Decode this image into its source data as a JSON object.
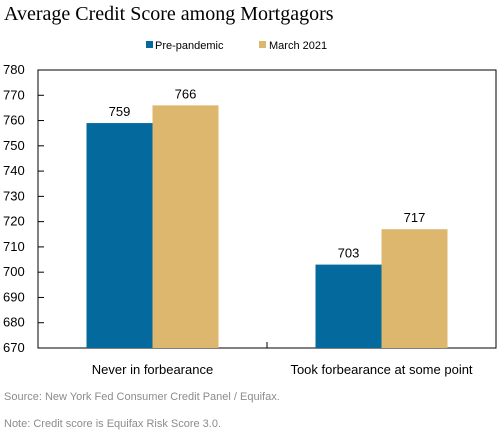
{
  "title": "Average Credit Score among Mortgagors",
  "source": "Source: New York Fed Consumer Credit Panel / Equifax.",
  "note": "Note: Credit score is Equifax Risk Score 3.0.",
  "colors": {
    "pre": "#046A9E",
    "march": "#DDB76D",
    "axis": "#000000"
  },
  "chart_data": {
    "type": "bar",
    "title": "Average Credit Score among Mortgagors",
    "categories": [
      "Never in forbearance",
      "Took forbearance at some point"
    ],
    "series": [
      {
        "name": "Pre-pandemic",
        "values": [
          759,
          703
        ]
      },
      {
        "name": "March 2021",
        "values": [
          766,
          717
        ]
      }
    ],
    "data_labels": [
      [
        "759",
        "703"
      ],
      [
        "766",
        "717"
      ]
    ],
    "ylim": [
      670,
      780
    ],
    "yticks": [
      670,
      680,
      690,
      700,
      710,
      720,
      730,
      740,
      750,
      760,
      770,
      780
    ],
    "legend_position": "top-center",
    "grid": false,
    "xlabel": "",
    "ylabel": ""
  }
}
